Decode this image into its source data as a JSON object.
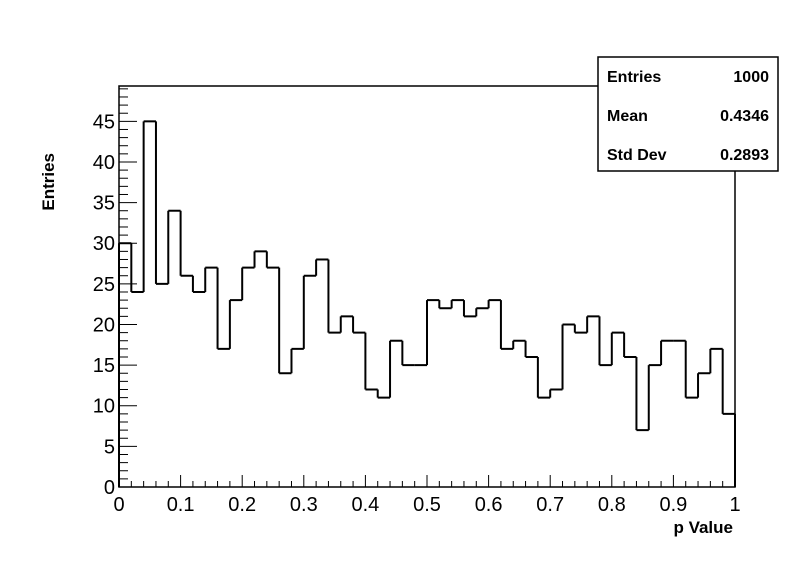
{
  "chart_data": {
    "type": "bar",
    "subtype": "histogram",
    "xlabel": "p Value",
    "ylabel": "Entries",
    "xlim": [
      0,
      1
    ],
    "ylim": [
      0,
      49.35
    ],
    "bins": 50,
    "bin_width": 0.02,
    "x_ticks": [
      "0",
      "0.1",
      "0.2",
      "0.3",
      "0.4",
      "0.5",
      "0.6",
      "0.7",
      "0.8",
      "0.9",
      "1"
    ],
    "y_ticks": [
      "0",
      "5",
      "10",
      "15",
      "20",
      "25",
      "30",
      "35",
      "40",
      "45"
    ],
    "values": [
      30,
      24,
      45,
      25,
      34,
      26,
      24,
      27,
      17,
      23,
      27,
      29,
      27,
      14,
      17,
      26,
      28,
      19,
      21,
      19,
      12,
      11,
      18,
      15,
      15,
      23,
      22,
      23,
      21,
      22,
      23,
      17,
      18,
      16,
      11,
      12,
      20,
      19,
      21,
      15,
      19,
      16,
      7,
      15,
      18,
      18,
      11,
      14,
      17,
      9
    ],
    "grid": false,
    "line_color": "#000000",
    "stats": {
      "entries_label": "Entries",
      "entries_value": "1000",
      "mean_label": "Mean",
      "mean_value": "0.4346",
      "std_label": "Std Dev",
      "std_value": "0.2893"
    }
  }
}
